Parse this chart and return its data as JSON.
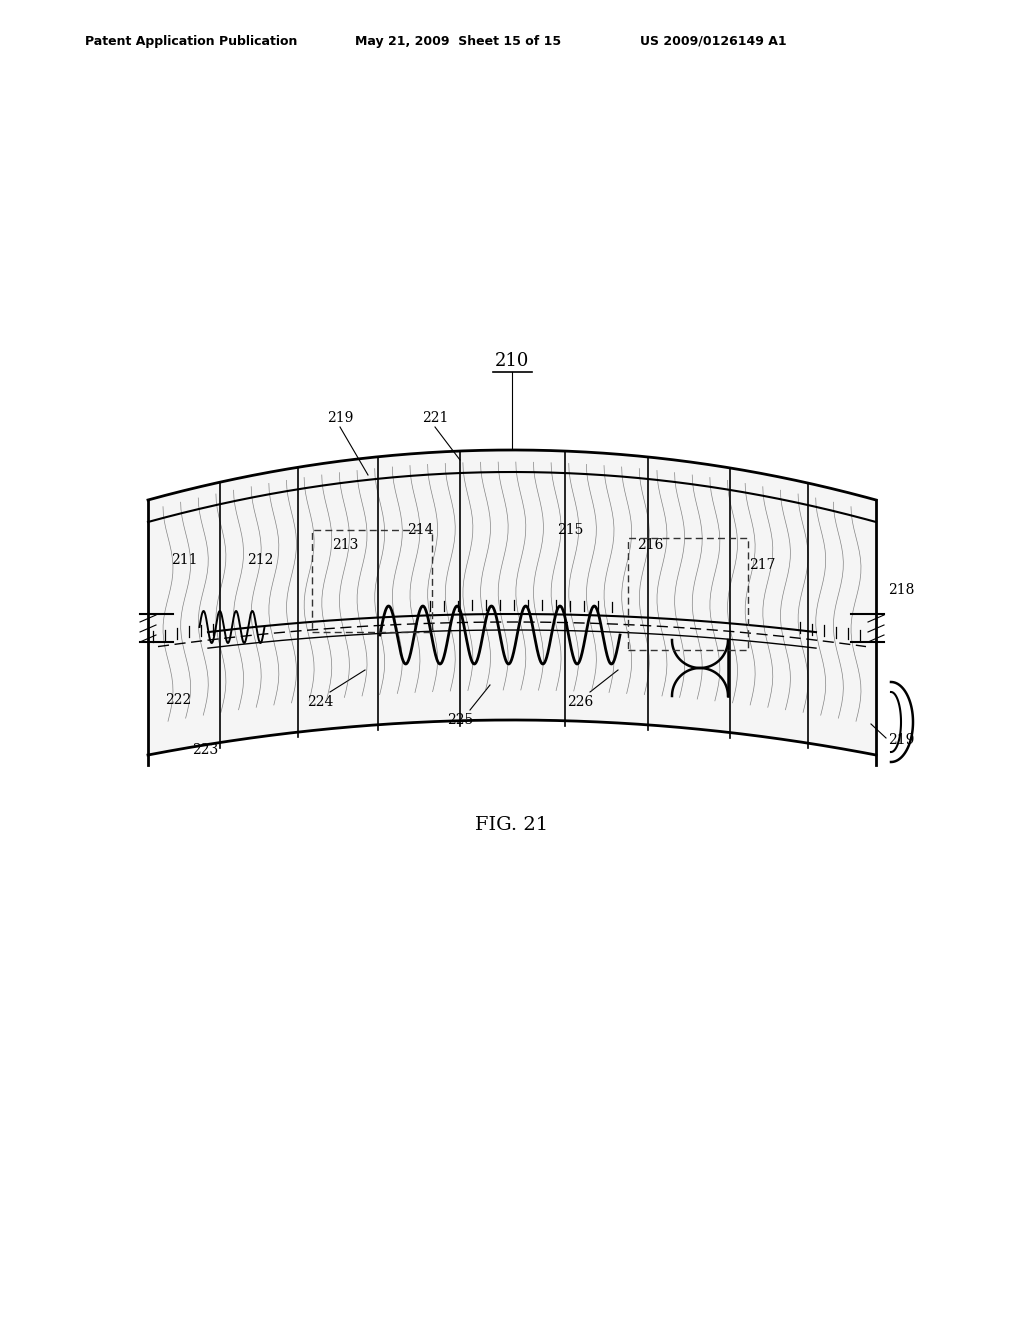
{
  "title": "FIG. 21",
  "header_left": "Patent Application Publication",
  "header_mid": "May 21, 2009  Sheet 15 of 15",
  "header_right": "US 2009/0126149 A1",
  "label_210": "210",
  "label_211": "211",
  "label_212": "212",
  "label_213": "213",
  "label_214": "214",
  "label_215": "215",
  "label_216": "216",
  "label_217": "217",
  "label_218": "218",
  "label_219_top": "219",
  "label_219_bot": "219",
  "label_221": "221",
  "label_222": "222",
  "label_223": "223",
  "label_224": "224",
  "label_225": "225",
  "label_226": "226",
  "bg_color": "#ffffff",
  "line_color": "#000000",
  "fig_label_fontsize": 14,
  "header_fontsize": 9,
  "annot_fontsize": 10
}
